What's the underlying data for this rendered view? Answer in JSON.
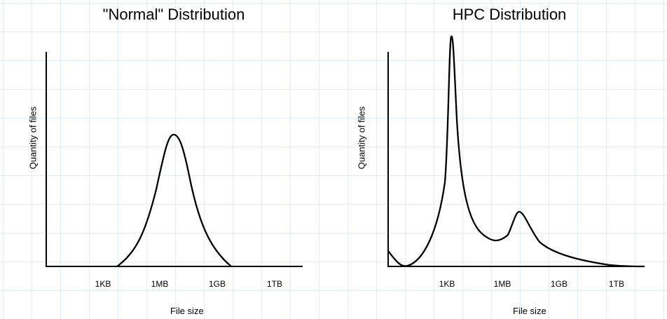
{
  "left_chart": {
    "title": "\"Normal\" Distribution",
    "ylabel": "Quantity of files",
    "xlabel": "File size",
    "ticks": [
      "1KB",
      "1MB",
      "1GB",
      "1TB"
    ]
  },
  "right_chart": {
    "title": "HPC Distribution",
    "ylabel": "Quantity of files",
    "xlabel": "File size",
    "ticks": [
      "1KB",
      "1MB",
      "1GB",
      "1TB"
    ]
  },
  "colors": {
    "curve": "#000000",
    "grid": "#e6edf3",
    "background": "#ffffff"
  }
}
